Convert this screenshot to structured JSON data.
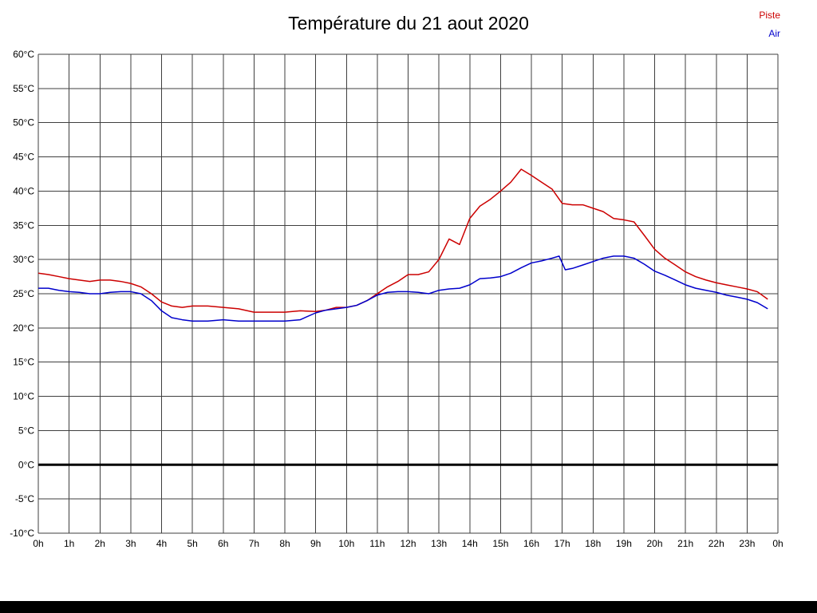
{
  "title": "Température du 21 aout 2020",
  "legend": [
    {
      "label": "Piste",
      "color": "#cc0000"
    },
    {
      "label": "Air",
      "color": "#0000cc"
    }
  ],
  "chart_data": {
    "type": "line",
    "title": "Température du 21 aout 2020",
    "xlabel": "",
    "ylabel": "",
    "xlim": [
      0,
      24
    ],
    "ylim": [
      -10,
      60
    ],
    "y_tick_step": 5,
    "y_tick_suffix": "°C",
    "x_ticks": [
      "0h",
      "1h",
      "2h",
      "3h",
      "4h",
      "5h",
      "6h",
      "7h",
      "8h",
      "9h",
      "10h",
      "11h",
      "12h",
      "13h",
      "14h",
      "15h",
      "16h",
      "17h",
      "18h",
      "19h",
      "20h",
      "21h",
      "22h",
      "23h",
      "0h"
    ],
    "grid": true,
    "zero_line": true,
    "legend_position": "top-right",
    "colors": {
      "grid": "#3f3f3f",
      "zero_line": "#000000"
    },
    "series": [
      {
        "name": "Piste",
        "color": "#cc0000",
        "x": [
          0,
          0.33,
          0.67,
          1,
          1.33,
          1.67,
          2,
          2.33,
          2.67,
          3,
          3.33,
          3.67,
          4,
          4.33,
          4.67,
          5,
          5.5,
          6,
          6.5,
          7,
          7.5,
          8,
          8.5,
          9,
          9.33,
          9.67,
          10,
          10.33,
          10.67,
          11,
          11.33,
          11.67,
          12,
          12.33,
          12.67,
          13,
          13.33,
          13.67,
          14,
          14.33,
          14.67,
          15,
          15.33,
          15.67,
          16,
          16.33,
          16.67,
          17,
          17.33,
          17.67,
          18,
          18.33,
          18.67,
          19,
          19.33,
          19.67,
          20,
          20.33,
          20.67,
          21,
          21.33,
          21.67,
          22,
          22.33,
          22.67,
          23,
          23.33,
          23.67
        ],
        "y": [
          28.0,
          27.8,
          27.5,
          27.2,
          27.0,
          26.8,
          27.0,
          27.0,
          26.8,
          26.5,
          26.0,
          25.0,
          23.8,
          23.2,
          23.0,
          23.2,
          23.2,
          23.0,
          22.8,
          22.3,
          22.3,
          22.3,
          22.5,
          22.4,
          22.6,
          23.0,
          23.0,
          23.3,
          24.0,
          25.0,
          26.0,
          26.8,
          27.8,
          27.8,
          28.2,
          30.0,
          33.0,
          32.2,
          36.0,
          37.8,
          38.8,
          40.0,
          41.3,
          43.2,
          42.3,
          41.3,
          40.3,
          38.2,
          38.0,
          38.0,
          37.5,
          37.0,
          36.0,
          35.8,
          35.5,
          33.5,
          31.5,
          30.2,
          29.2,
          28.2,
          27.5,
          27.0,
          26.6,
          26.3,
          26.0,
          25.7,
          25.3,
          24.2
        ]
      },
      {
        "name": "Air",
        "color": "#0000cc",
        "x": [
          0,
          0.33,
          0.67,
          1,
          1.33,
          1.67,
          2,
          2.33,
          2.67,
          3,
          3.33,
          3.67,
          4,
          4.33,
          4.67,
          5,
          5.5,
          6,
          6.5,
          7,
          7.5,
          8,
          8.5,
          9,
          9.33,
          9.67,
          10,
          10.33,
          10.67,
          11,
          11.33,
          11.67,
          12,
          12.33,
          12.67,
          13,
          13.33,
          13.67,
          14,
          14.33,
          14.67,
          15,
          15.33,
          15.67,
          16,
          16.33,
          16.67,
          16.9,
          17.1,
          17.33,
          17.67,
          18,
          18.33,
          18.67,
          19,
          19.33,
          19.67,
          20,
          20.33,
          20.67,
          21,
          21.33,
          21.67,
          22,
          22.33,
          22.67,
          23,
          23.33,
          23.67
        ],
        "y": [
          25.8,
          25.8,
          25.5,
          25.3,
          25.2,
          25.0,
          25.0,
          25.2,
          25.3,
          25.3,
          25.0,
          24.0,
          22.5,
          21.5,
          21.2,
          21.0,
          21.0,
          21.2,
          21.0,
          21.0,
          21.0,
          21.0,
          21.2,
          22.2,
          22.6,
          22.8,
          23.0,
          23.3,
          24.0,
          24.8,
          25.2,
          25.3,
          25.3,
          25.2,
          25.0,
          25.5,
          25.7,
          25.8,
          26.3,
          27.2,
          27.3,
          27.5,
          28.0,
          28.8,
          29.5,
          29.8,
          30.2,
          30.5,
          28.5,
          28.7,
          29.2,
          29.7,
          30.2,
          30.5,
          30.5,
          30.2,
          29.3,
          28.3,
          27.7,
          27.0,
          26.3,
          25.8,
          25.5,
          25.2,
          24.8,
          24.5,
          24.2,
          23.7,
          22.8
        ]
      }
    ]
  }
}
